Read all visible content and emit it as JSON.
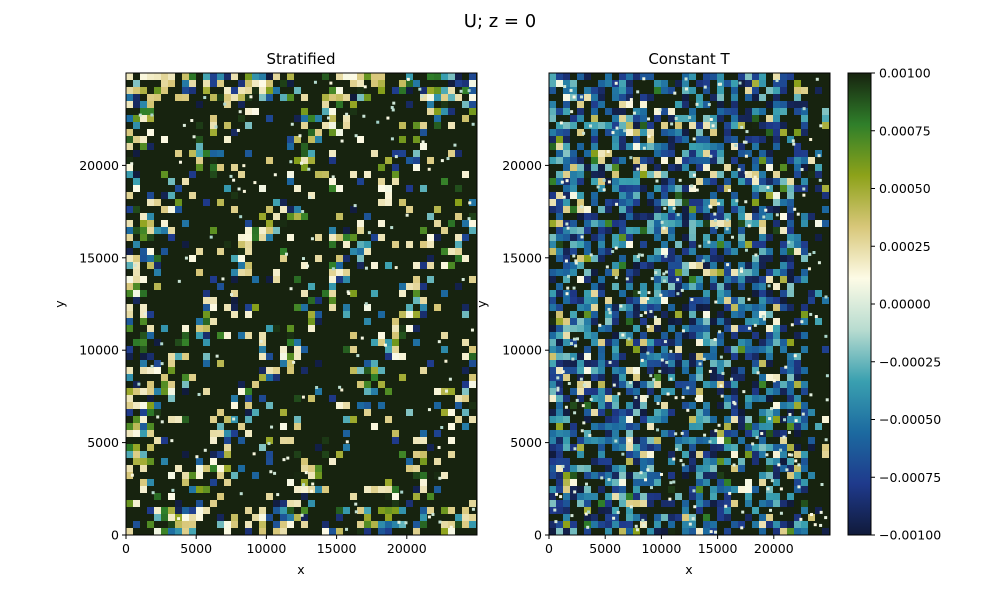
{
  "figure": {
    "suptitle": "U; z = 0"
  },
  "chart_data": [
    {
      "type": "heatmap",
      "title": "Stratified",
      "xlabel": "x",
      "ylabel": "y",
      "xlim": [
        0,
        25000
      ],
      "ylim": [
        0,
        25000
      ],
      "xticks": [
        0,
        5000,
        10000,
        15000,
        20000
      ],
      "yticks": [
        0,
        5000,
        10000,
        15000,
        20000
      ],
      "value_range": [
        -0.001,
        0.001
      ],
      "colormap": "delta",
      "seed": 17,
      "density": 0.34,
      "negative_share": 0.35,
      "bias": "diagonal-streaks",
      "background_color": "#17230f"
    },
    {
      "type": "heatmap",
      "title": "Constant T",
      "xlabel": "x",
      "ylabel": "y",
      "xlim": [
        0,
        25000
      ],
      "ylim": [
        0,
        25000
      ],
      "xticks": [
        0,
        5000,
        10000,
        15000,
        20000
      ],
      "yticks": [
        0,
        5000,
        10000,
        15000,
        20000
      ],
      "value_range": [
        -0.001,
        0.001
      ],
      "colormap": "delta",
      "seed": 91,
      "density": 0.62,
      "negative_share": 0.8,
      "bias": "scattered",
      "background_color": "#17230f"
    }
  ],
  "colorbar": {
    "min": -0.001,
    "max": 0.001,
    "ticks": [
      "0.00100",
      "0.00075",
      "0.00050",
      "0.00025",
      "0.00000",
      "−0.00025",
      "−0.00050",
      "−0.00075",
      "−0.00100"
    ],
    "stops": [
      "#101a3a",
      "#1f3a8c",
      "#1c6aa0",
      "#3aa0b0",
      "#b8dcd0",
      "#fdfbe6",
      "#d8c77a",
      "#8da21a",
      "#2f7f2a",
      "#17230f"
    ]
  }
}
